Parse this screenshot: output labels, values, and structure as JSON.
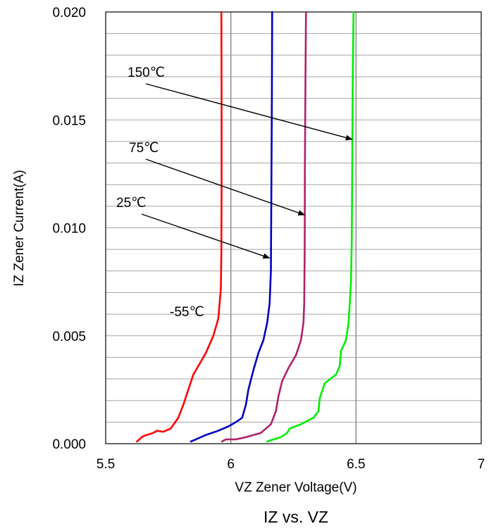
{
  "chart_data": {
    "type": "line",
    "title": "IZ vs. VZ",
    "xlabel": "VZ Zener Voltage(V)",
    "ylabel": "IZ Zener Current(A)",
    "xlim": [
      5.5,
      7
    ],
    "ylim": [
      0,
      0.02
    ],
    "x_ticks": [
      5.5,
      6,
      6.5,
      7
    ],
    "x_tick_labels": [
      "5.5",
      "6",
      "6.5",
      "7"
    ],
    "y_ticks": [
      0,
      0.005,
      0.01,
      0.015,
      0.02
    ],
    "y_tick_labels": [
      "0.000",
      "0.005",
      "0.010",
      "0.015",
      "0.020"
    ],
    "grid": {
      "horizontal_step": 0.001,
      "vertical_at": [
        6,
        6.5
      ]
    },
    "series": [
      {
        "name": "-55℃",
        "color": "#ff0000",
        "points": [
          [
            5.625,
            0.0001
          ],
          [
            5.65,
            0.00035
          ],
          [
            5.69,
            0.0005
          ],
          [
            5.705,
            0.0006
          ],
          [
            5.73,
            0.00055
          ],
          [
            5.76,
            0.0007
          ],
          [
            5.79,
            0.0012
          ],
          [
            5.81,
            0.0018
          ],
          [
            5.83,
            0.0025
          ],
          [
            5.85,
            0.0032
          ],
          [
            5.875,
            0.0037
          ],
          [
            5.9,
            0.0042
          ],
          [
            5.93,
            0.005
          ],
          [
            5.95,
            0.0058
          ],
          [
            5.955,
            0.0065
          ],
          [
            5.96,
            0.0072
          ],
          [
            5.962,
            0.009
          ],
          [
            5.963,
            0.012
          ],
          [
            5.963,
            0.016
          ],
          [
            5.962,
            0.02
          ]
        ]
      },
      {
        "name": "25℃",
        "color": "#0000c0",
        "points": [
          [
            5.84,
            0.0001
          ],
          [
            5.86,
            0.0002
          ],
          [
            5.9,
            0.0004
          ],
          [
            5.95,
            0.0006
          ],
          [
            5.99,
            0.0008
          ],
          [
            6.02,
            0.001
          ],
          [
            6.045,
            0.0012
          ],
          [
            6.06,
            0.0018
          ],
          [
            6.07,
            0.0025
          ],
          [
            6.09,
            0.0034
          ],
          [
            6.11,
            0.0042
          ],
          [
            6.13,
            0.0048
          ],
          [
            6.145,
            0.0056
          ],
          [
            6.155,
            0.0065
          ],
          [
            6.16,
            0.008
          ],
          [
            6.162,
            0.012
          ],
          [
            6.164,
            0.016
          ],
          [
            6.165,
            0.02
          ]
        ]
      },
      {
        "name": "75℃",
        "color": "#b0206a",
        "points": [
          [
            5.965,
            0.0001
          ],
          [
            5.98,
            0.0002
          ],
          [
            6.02,
            0.0002
          ],
          [
            6.06,
            0.0003
          ],
          [
            6.12,
            0.0005
          ],
          [
            6.16,
            0.0009
          ],
          [
            6.18,
            0.0015
          ],
          [
            6.19,
            0.0022
          ],
          [
            6.205,
            0.0029
          ],
          [
            6.23,
            0.0035
          ],
          [
            6.26,
            0.0041
          ],
          [
            6.28,
            0.0048
          ],
          [
            6.29,
            0.0056
          ],
          [
            6.293,
            0.0065
          ],
          [
            6.295,
            0.009
          ],
          [
            6.296,
            0.013
          ],
          [
            6.298,
            0.017
          ],
          [
            6.3,
            0.02
          ]
        ]
      },
      {
        "name": "150℃",
        "color": "#00ee00",
        "points": [
          [
            6.145,
            0.0001
          ],
          [
            6.17,
            0.0002
          ],
          [
            6.2,
            0.0003
          ],
          [
            6.225,
            0.0005
          ],
          [
            6.235,
            0.0007
          ],
          [
            6.28,
            0.0009
          ],
          [
            6.33,
            0.0012
          ],
          [
            6.35,
            0.0015
          ],
          [
            6.355,
            0.0021
          ],
          [
            6.375,
            0.0028
          ],
          [
            6.42,
            0.0032
          ],
          [
            6.435,
            0.0036
          ],
          [
            6.44,
            0.0043
          ],
          [
            6.46,
            0.0048
          ],
          [
            6.47,
            0.0056
          ],
          [
            6.475,
            0.0065
          ],
          [
            6.48,
            0.0075
          ],
          [
            6.483,
            0.0095
          ],
          [
            6.485,
            0.013
          ],
          [
            6.487,
            0.017
          ],
          [
            6.49,
            0.02
          ]
        ]
      }
    ],
    "annotations": [
      {
        "text": "150℃",
        "arrow_to": [
          6.49,
          0.0141
        ]
      },
      {
        "text": "75℃",
        "arrow_to": [
          6.3,
          0.0106
        ]
      },
      {
        "text": "25℃",
        "arrow_to": [
          6.16,
          0.0086
        ]
      },
      {
        "text": "-55℃",
        "arrow_to": null
      }
    ]
  }
}
